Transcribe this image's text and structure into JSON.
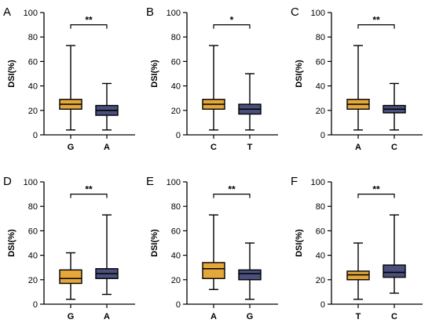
{
  "colors": {
    "gold": "#E3A73B",
    "navy": "#4A4F7B",
    "axis": "#000000"
  },
  "chart_data": [
    {
      "type": "box",
      "panel_label": "A",
      "ylabel": "DSI(%)",
      "ylim": [
        0,
        100
      ],
      "yticks": [
        0,
        20,
        40,
        60,
        80,
        100
      ],
      "categories": [
        "G",
        "A"
      ],
      "series": [
        {
          "category": "G",
          "color": "gold",
          "min": 4,
          "q1": 21,
          "median": 25,
          "q3": 29,
          "max": 73
        },
        {
          "category": "A",
          "color": "navy",
          "min": 4,
          "q1": 16,
          "median": 20,
          "q3": 24,
          "max": 42
        }
      ],
      "significance": "**"
    },
    {
      "type": "box",
      "panel_label": "B",
      "ylabel": "DSI(%)",
      "ylim": [
        0,
        100
      ],
      "yticks": [
        0,
        20,
        40,
        60,
        80,
        100
      ],
      "categories": [
        "C",
        "T"
      ],
      "series": [
        {
          "category": "C",
          "color": "gold",
          "min": 4,
          "q1": 21,
          "median": 25,
          "q3": 29,
          "max": 73
        },
        {
          "category": "T",
          "color": "navy",
          "min": 4,
          "q1": 17,
          "median": 21,
          "q3": 25,
          "max": 50
        }
      ],
      "significance": "*"
    },
    {
      "type": "box",
      "panel_label": "C",
      "ylabel": "DSI(%)",
      "ylim": [
        0,
        100
      ],
      "yticks": [
        0,
        20,
        40,
        60,
        80,
        100
      ],
      "categories": [
        "A",
        "C"
      ],
      "series": [
        {
          "category": "A",
          "color": "gold",
          "min": 4,
          "q1": 21,
          "median": 25,
          "q3": 29,
          "max": 73
        },
        {
          "category": "C",
          "color": "navy",
          "min": 4,
          "q1": 18,
          "median": 21,
          "q3": 24,
          "max": 42
        }
      ],
      "significance": "**"
    },
    {
      "type": "box",
      "panel_label": "D",
      "ylabel": "DSI(%)",
      "ylim": [
        0,
        100
      ],
      "yticks": [
        0,
        20,
        40,
        60,
        80,
        100
      ],
      "categories": [
        "G",
        "A"
      ],
      "series": [
        {
          "category": "G",
          "color": "gold",
          "min": 4,
          "q1": 17,
          "median": 21,
          "q3": 28,
          "max": 42
        },
        {
          "category": "A",
          "color": "navy",
          "min": 8,
          "q1": 21,
          "median": 25,
          "q3": 29,
          "max": 73
        }
      ],
      "significance": "**"
    },
    {
      "type": "box",
      "panel_label": "E",
      "ylabel": "DSI(%)",
      "ylim": [
        0,
        100
      ],
      "yticks": [
        0,
        20,
        40,
        60,
        80,
        100
      ],
      "categories": [
        "A",
        "G"
      ],
      "series": [
        {
          "category": "A",
          "color": "gold",
          "min": 12,
          "q1": 21,
          "median": 29,
          "q3": 34,
          "max": 73
        },
        {
          "category": "G",
          "color": "navy",
          "min": 4,
          "q1": 20,
          "median": 25,
          "q3": 28,
          "max": 50
        }
      ],
      "significance": "**"
    },
    {
      "type": "box",
      "panel_label": "F",
      "ylabel": "DSI(%)",
      "ylim": [
        0,
        100
      ],
      "yticks": [
        0,
        20,
        40,
        60,
        80,
        100
      ],
      "categories": [
        "T",
        "C"
      ],
      "series": [
        {
          "category": "T",
          "color": "gold",
          "min": 4,
          "q1": 20,
          "median": 24,
          "q3": 27,
          "max": 50
        },
        {
          "category": "C",
          "color": "navy",
          "min": 9,
          "q1": 22,
          "median": 26,
          "q3": 32,
          "max": 73
        }
      ],
      "significance": "**"
    }
  ]
}
